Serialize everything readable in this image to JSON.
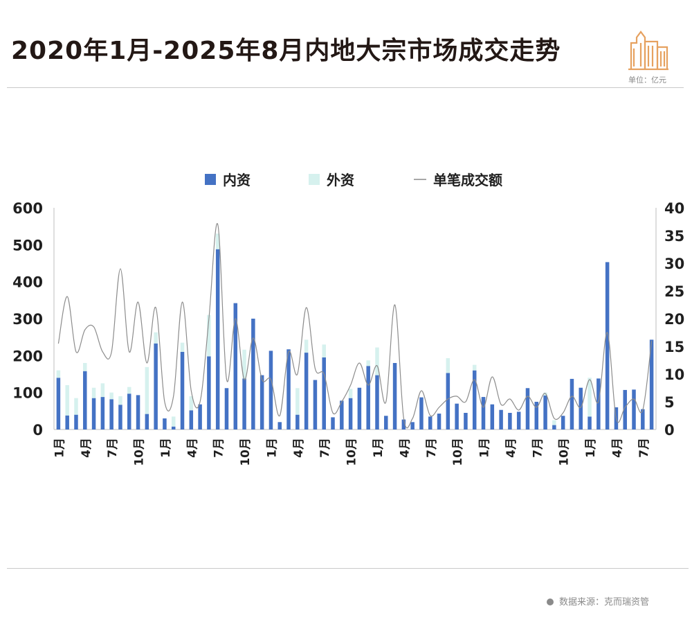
{
  "header": {
    "title": "2020年1月-2025年8月内地大宗市场成交走势",
    "unit": "单位：亿元"
  },
  "footer": {
    "source": "数据来源：克而瑞资管"
  },
  "colors": {
    "domestic": "#4472c4",
    "foreign": "#d6f1ee",
    "line": "#8c8c8c",
    "icon": "#e6a15f"
  },
  "icons": [
    "building-icon"
  ],
  "chart_data": {
    "type": "bar",
    "stacked": true,
    "legend": [
      "内资",
      "外资",
      "单笔成交额"
    ],
    "legend_position": "top",
    "y_left": {
      "min": 0,
      "max": 600,
      "ticks": [
        0,
        100,
        200,
        300,
        400,
        500,
        600
      ]
    },
    "y_right": {
      "min": 0,
      "max": 40,
      "ticks": [
        0,
        5,
        10,
        15,
        20,
        25,
        30,
        35,
        40
      ]
    },
    "x_tick_labels": [
      {
        "index": 0,
        "label": "1月"
      },
      {
        "index": 3,
        "label": "4月"
      },
      {
        "index": 6,
        "label": "7月"
      },
      {
        "index": 9,
        "label": "10月"
      },
      {
        "index": 12,
        "label": "1月"
      },
      {
        "index": 15,
        "label": "4月"
      },
      {
        "index": 18,
        "label": "7月"
      },
      {
        "index": 21,
        "label": "10月"
      },
      {
        "index": 24,
        "label": "1月"
      },
      {
        "index": 27,
        "label": "4月"
      },
      {
        "index": 30,
        "label": "7月"
      },
      {
        "index": 33,
        "label": "10月"
      },
      {
        "index": 36,
        "label": "1月"
      },
      {
        "index": 39,
        "label": "4月"
      },
      {
        "index": 42,
        "label": "7月"
      },
      {
        "index": 45,
        "label": "10月"
      },
      {
        "index": 48,
        "label": "1月"
      },
      {
        "index": 51,
        "label": "4月"
      },
      {
        "index": 54,
        "label": "7月"
      },
      {
        "index": 57,
        "label": "10月"
      },
      {
        "index": 60,
        "label": "1月"
      },
      {
        "index": 63,
        "label": "4月"
      },
      {
        "index": 66,
        "label": "7月"
      }
    ],
    "series": [
      {
        "name": "内资",
        "axis": "left",
        "kind": "bar",
        "values": [
          140,
          38,
          40,
          158,
          85,
          88,
          82,
          67,
          97,
          93,
          42,
          233,
          30,
          8,
          210,
          52,
          68,
          198,
          488,
          112,
          342,
          138,
          300,
          147,
          213,
          20,
          217,
          40,
          208,
          134,
          195,
          33,
          78,
          85,
          113,
          172,
          147,
          37,
          180,
          27,
          20,
          87,
          35,
          43,
          153,
          70,
          45,
          160,
          88,
          68,
          53,
          45,
          48,
          112,
          75,
          92,
          12,
          37,
          137,
          113,
          35,
          138,
          453,
          60,
          107,
          108,
          55,
          243
        ]
      },
      {
        "name": "外资",
        "axis": "left",
        "kind": "bar",
        "values": [
          20,
          82,
          45,
          22,
          28,
          37,
          18,
          23,
          18,
          0,
          127,
          30,
          0,
          27,
          25,
          38,
          0,
          112,
          42,
          0,
          0,
          78,
          0,
          0,
          0,
          0,
          0,
          72,
          35,
          0,
          35,
          0,
          0,
          25,
          0,
          15,
          75,
          0,
          0,
          0,
          0,
          0,
          0,
          0,
          40,
          0,
          0,
          15,
          0,
          0,
          0,
          0,
          0,
          0,
          0,
          8,
          13,
          0,
          0,
          0,
          105,
          0,
          0,
          0,
          0,
          0,
          0,
          0
        ]
      },
      {
        "name": "单笔成交额",
        "axis": "right",
        "kind": "line",
        "values": [
          15.5,
          24,
          14,
          18,
          18.5,
          14,
          14,
          29,
          14,
          23,
          12,
          22,
          5,
          6,
          23,
          7,
          5,
          20,
          37,
          9,
          20,
          9,
          16.5,
          9,
          9,
          2.5,
          14,
          10,
          22,
          11,
          10,
          3,
          5,
          8,
          12,
          8,
          11.5,
          5,
          22.5,
          2,
          2,
          7,
          2.5,
          4,
          5.5,
          6,
          5,
          9,
          4,
          9.5,
          4.5,
          5.5,
          3.5,
          6,
          4,
          6.5,
          2,
          3,
          6,
          4,
          9,
          5,
          17.5,
          2,
          4,
          5.5,
          3.5,
          16
        ]
      }
    ]
  }
}
